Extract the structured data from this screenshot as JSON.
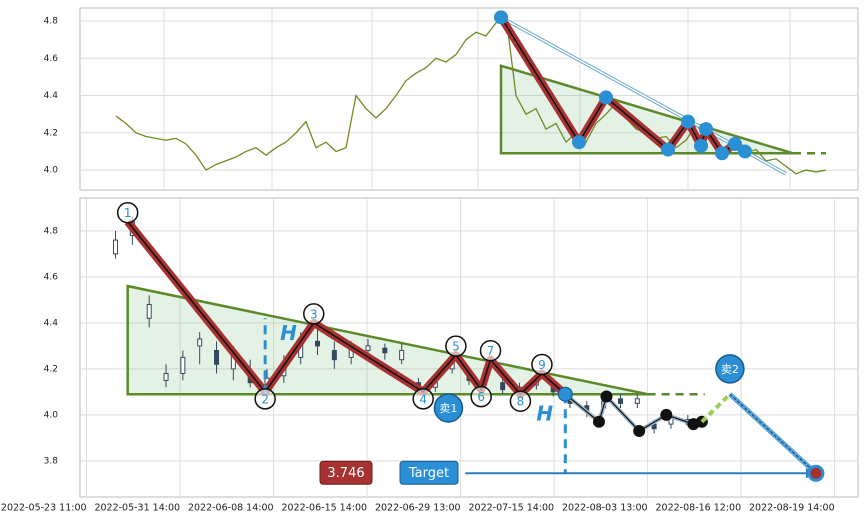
{
  "chart_data": [
    {
      "type": "line",
      "xlim": [
        -3.6,
        74.2
      ],
      "ylim": [
        3.893,
        4.87
      ],
      "yticks": [
        {
          "value": 4,
          "label": "4.0"
        },
        4.2,
        4.4,
        4.6,
        4.8
      ],
      "grid": true,
      "series": [
        {
          "color": "#6b8e23",
          "values": [
            4.29,
            4.25,
            4.2,
            4.18,
            4.17,
            4.16,
            4.17,
            4.14,
            4.08,
            4.0,
            4.03,
            4.05,
            4.07,
            4.1,
            4.12,
            4.08,
            4.12,
            4.15,
            4.2,
            4.26,
            4.12,
            4.15,
            4.1,
            4.12,
            4.4,
            4.33,
            4.28,
            4.33,
            4.4,
            4.48,
            4.52,
            4.55,
            4.6,
            4.58,
            4.62,
            4.7,
            4.74,
            4.72,
            4.79,
            4.83,
            4.4,
            4.3,
            4.33,
            4.22,
            4.25,
            4.15,
            4.2,
            4.15,
            4.25,
            4.3,
            4.36,
            4.28,
            4.22,
            4.2,
            4.17,
            4.18,
            4.12,
            4.16,
            4.24,
            4.19,
            4.14,
            4.1,
            4.12,
            4.09,
            4.11,
            4.05,
            4.06,
            4.02,
            3.98,
            4.0,
            3.99,
            4.0
          ]
        }
      ],
      "pattern": {
        "color": "#a83232",
        "x": [
          38.5,
          46.3,
          49,
          55.2,
          57.2,
          58.5,
          59,
          60.6,
          61.9,
          62.9
        ],
        "y": [
          4.82,
          4.15,
          4.39,
          4.11,
          4.26,
          4.13,
          4.22,
          4.09,
          4.14,
          4.1
        ]
      },
      "triangle": {
        "color": "#5c8a2a",
        "x": [
          38.5,
          38.5,
          67.7
        ],
        "y": [
          4.56,
          4.09,
          4.09
        ]
      },
      "support": {
        "x": [
          67.7,
          71
        ],
        "y": [
          4.09,
          4.09
        ]
      },
      "arrow": {
        "x": [
          38.5,
          67
        ],
        "y": [
          4.82,
          3.98
        ]
      }
    },
    {
      "type": "candlestick",
      "xlim": [
        -0.07,
        8.25
      ],
      "ylim": [
        3.643,
        4.943
      ],
      "yticks": [
        3.8,
        {
          "value": 4,
          "label": "4.0"
        },
        4.2,
        4.4,
        4.6,
        4.8
      ],
      "xticks": [
        {
          "value": 0,
          "label": "2022-05-23 11:00"
        },
        {
          "value": 1,
          "label": "2022-05-31 14:00"
        },
        {
          "value": 2,
          "label": "2022-06-08 14:00"
        },
        {
          "value": 3,
          "label": "2022-06-15 14:00"
        },
        {
          "value": 4,
          "label": "2022-06-29 13:00"
        },
        {
          "value": 5,
          "label": "2022-07-15 14:00"
        },
        {
          "value": 6,
          "label": "2022-08-03 13:00"
        },
        {
          "value": 7,
          "label": "2022-08-16 12:00"
        },
        {
          "value": 8,
          "label": "2022-08-19 14:00"
        }
      ],
      "grid": true,
      "candles": {
        "color": "#34495e",
        "x": [
          0.31,
          0.49,
          0.67,
          0.85,
          1.03,
          1.21,
          1.39,
          1.57,
          1.75,
          1.93,
          2.11,
          2.29,
          2.47,
          2.65,
          2.83,
          3.01,
          3.19,
          3.37,
          3.55,
          3.73,
          3.91,
          4.09,
          4.27,
          4.45,
          4.63,
          4.81,
          4.99,
          5.17,
          5.35,
          5.53,
          5.71,
          5.89,
          6.07,
          6.25,
          6.43
        ],
        "open": [
          4.7,
          4.78,
          4.42,
          4.15,
          4.18,
          4.3,
          4.28,
          4.2,
          4.18,
          4.12,
          4.17,
          4.25,
          4.32,
          4.28,
          4.25,
          4.28,
          4.29,
          4.24,
          4.14,
          4.12,
          4.2,
          4.18,
          4.15,
          4.14,
          4.1,
          4.13,
          4.12,
          4.08,
          4.04,
          4.03,
          4.07,
          4.05,
          3.96,
          3.96,
          3.98
        ],
        "high": [
          4.8,
          4.86,
          4.52,
          4.22,
          4.28,
          4.36,
          4.32,
          4.3,
          4.24,
          4.2,
          4.26,
          4.36,
          4.4,
          4.32,
          4.32,
          4.33,
          4.31,
          4.31,
          4.16,
          4.16,
          4.26,
          4.2,
          4.22,
          4.16,
          4.14,
          4.18,
          4.14,
          4.1,
          4.06,
          4.08,
          4.09,
          4.09,
          3.98,
          4.01,
          4.0
        ],
        "low": [
          4.68,
          4.74,
          4.38,
          4.12,
          4.15,
          4.22,
          4.18,
          4.15,
          4.12,
          4.1,
          4.14,
          4.22,
          4.26,
          4.2,
          4.22,
          4.25,
          4.24,
          4.22,
          4.1,
          4.1,
          4.18,
          4.13,
          4.13,
          4.09,
          4.08,
          4.11,
          4.08,
          4.03,
          3.99,
          4.01,
          4.03,
          4.03,
          3.92,
          3.94,
          3.95
        ],
        "close": [
          4.76,
          4.84,
          4.48,
          4.18,
          4.25,
          4.33,
          4.22,
          4.26,
          4.14,
          4.16,
          4.22,
          4.33,
          4.3,
          4.24,
          4.29,
          4.3,
          4.27,
          4.28,
          4.12,
          4.14,
          4.24,
          4.15,
          4.2,
          4.11,
          4.12,
          4.15,
          4.1,
          4.05,
          4.02,
          4.06,
          4.05,
          4.07,
          3.94,
          3.99,
          3.96
        ]
      },
      "pattern": {
        "color": "#a83232",
        "x": [
          0.44,
          1.91,
          2.43,
          3.6,
          3.95,
          4.22,
          4.32,
          4.64,
          4.87,
          5.12
        ],
        "y": [
          4.84,
          4.1,
          4.4,
          4.1,
          4.26,
          4.11,
          4.24,
          4.09,
          4.18,
          4.09
        ]
      },
      "point_labels": [
        "1",
        "2",
        "3",
        "4",
        "5",
        "6",
        "7",
        "8",
        "9"
      ],
      "triangle": {
        "color": "#5c8a2a",
        "x": [
          0.44,
          0.44,
          6.0
        ],
        "y": [
          4.56,
          4.09,
          4.09
        ]
      },
      "support": {
        "x": [
          6.0,
          6.61
        ],
        "y": [
          4.09,
          4.09
        ]
      },
      "projection": {
        "x": [
          5.12,
          5.48,
          5.56,
          5.91,
          6.2,
          6.49,
          6.58
        ],
        "y": [
          4.09,
          3.97,
          4.08,
          3.93,
          4.0,
          3.96,
          3.97
        ]
      },
      "rise": {
        "x": [
          6.58,
          6.88
        ],
        "y": [
          3.97,
          4.09
        ]
      },
      "drop": {
        "x": [
          6.88,
          7.8
        ],
        "y": [
          4.09,
          3.746
        ]
      },
      "height_lines": [
        {
          "x": 1.91,
          "y": [
            4.09,
            4.42
          ]
        },
        {
          "x": 5.12,
          "y": [
            4.09,
            3.746
          ]
        }
      ],
      "annotations": [
        {
          "text": "H",
          "x": 2.16,
          "y": 4.35
        },
        {
          "text": "H",
          "x": 4.9,
          "y": 4.0
        }
      ],
      "sell_marks": [
        {
          "text": "卖1",
          "x": 3.87,
          "y": 4.03
        },
        {
          "text": "卖2",
          "x": 6.88,
          "y": 4.2
        }
      ],
      "target_price": 3.746,
      "target_label": "Target",
      "target_arrow_x": [
        4.05,
        7.8
      ]
    }
  ]
}
